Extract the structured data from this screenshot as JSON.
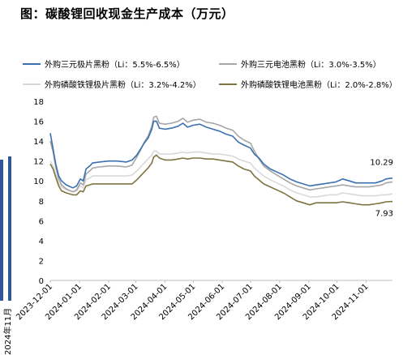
{
  "title": "图：碳酸锂回收现金生产成本（万元）",
  "left_fragment": {
    "label": "2024年11月",
    "color": "#2f5597"
  },
  "chart_data": {
    "type": "line",
    "ylim": [
      0,
      18
    ],
    "yticks": [
      0,
      2,
      4,
      6,
      8,
      10,
      12,
      14,
      16,
      18
    ],
    "xlim": [
      "2023-12-01",
      "2024-11-29"
    ],
    "xticks": [
      "2023-12-01",
      "2024-01-01",
      "2024-02-01",
      "2024-03-01",
      "2024-04-01",
      "2024-05-01",
      "2024-06-01",
      "2024-07-01",
      "2024-08-01",
      "2024-09-01",
      "2024-10-01",
      "2024-11-01"
    ],
    "annotations": [
      {
        "text": "10.29",
        "series": 0
      },
      {
        "text": "7.93",
        "series": 3
      }
    ],
    "series": [
      {
        "name": "外购三元极片黑粉（Li：5.5%-6.5%）",
        "color": "#3a6fb0",
        "points": [
          [
            "2023-12-01",
            14.8
          ],
          [
            "2023-12-04",
            13.2
          ],
          [
            "2023-12-07",
            11.6
          ],
          [
            "2023-12-10",
            10.5
          ],
          [
            "2023-12-13",
            10.0
          ],
          [
            "2023-12-18",
            9.6
          ],
          [
            "2023-12-25",
            9.3
          ],
          [
            "2023-12-29",
            9.5
          ],
          [
            "2024-01-02",
            10.2
          ],
          [
            "2024-01-05",
            10.0
          ],
          [
            "2024-01-08",
            11.2
          ],
          [
            "2024-01-12",
            11.5
          ],
          [
            "2024-01-15",
            11.8
          ],
          [
            "2024-01-22",
            11.9
          ],
          [
            "2024-02-01",
            12.0
          ],
          [
            "2024-02-10",
            12.0
          ],
          [
            "2024-02-20",
            11.9
          ],
          [
            "2024-02-26",
            12.1
          ],
          [
            "2024-03-02",
            12.6
          ],
          [
            "2024-03-06",
            13.2
          ],
          [
            "2024-03-10",
            13.8
          ],
          [
            "2024-03-14",
            14.3
          ],
          [
            "2024-03-18",
            15.2
          ],
          [
            "2024-03-20",
            16.0
          ],
          [
            "2024-03-23",
            16.0
          ],
          [
            "2024-03-26",
            15.3
          ],
          [
            "2024-04-01",
            15.2
          ],
          [
            "2024-04-08",
            15.3
          ],
          [
            "2024-04-15",
            15.5
          ],
          [
            "2024-04-20",
            15.8
          ],
          [
            "2024-04-25",
            15.4
          ],
          [
            "2024-05-01",
            15.6
          ],
          [
            "2024-05-08",
            15.7
          ],
          [
            "2024-05-15",
            15.4
          ],
          [
            "2024-05-22",
            15.2
          ],
          [
            "2024-05-29",
            15.0
          ],
          [
            "2024-06-05",
            14.7
          ],
          [
            "2024-06-12",
            14.5
          ],
          [
            "2024-06-18",
            13.9
          ],
          [
            "2024-06-24",
            13.6
          ],
          [
            "2024-07-01",
            13.3
          ],
          [
            "2024-07-05",
            12.7
          ],
          [
            "2024-07-10",
            12.3
          ],
          [
            "2024-07-15",
            11.7
          ],
          [
            "2024-07-22",
            11.2
          ],
          [
            "2024-07-29",
            10.9
          ],
          [
            "2024-08-05",
            10.6
          ],
          [
            "2024-08-12",
            10.2
          ],
          [
            "2024-08-19",
            9.9
          ],
          [
            "2024-08-26",
            9.7
          ],
          [
            "2024-09-02",
            9.5
          ],
          [
            "2024-09-09",
            9.6
          ],
          [
            "2024-09-16",
            9.7
          ],
          [
            "2024-09-23",
            9.8
          ],
          [
            "2024-09-30",
            9.9
          ],
          [
            "2024-10-07",
            10.2
          ],
          [
            "2024-10-14",
            10.0
          ],
          [
            "2024-10-21",
            9.8
          ],
          [
            "2024-10-28",
            9.8
          ],
          [
            "2024-11-04",
            9.8
          ],
          [
            "2024-11-11",
            9.8
          ],
          [
            "2024-11-18",
            10.0
          ],
          [
            "2024-11-22",
            10.2
          ],
          [
            "2024-11-29",
            10.29
          ]
        ]
      },
      {
        "name": "外购三元电池黑粉（Li：3.0%-3.5%）",
        "color": "#a6a6a6",
        "points": [
          [
            "2023-12-01",
            14.0
          ],
          [
            "2023-12-04",
            12.9
          ],
          [
            "2023-12-07",
            11.3
          ],
          [
            "2023-12-10",
            10.2
          ],
          [
            "2023-12-13",
            9.6
          ],
          [
            "2023-12-18",
            9.2
          ],
          [
            "2023-12-25",
            8.9
          ],
          [
            "2023-12-29",
            9.1
          ],
          [
            "2024-01-02",
            9.8
          ],
          [
            "2024-01-05",
            9.6
          ],
          [
            "2024-01-08",
            10.7
          ],
          [
            "2024-01-12",
            11.0
          ],
          [
            "2024-01-15",
            11.3
          ],
          [
            "2024-01-22",
            11.4
          ],
          [
            "2024-02-01",
            11.5
          ],
          [
            "2024-02-10",
            11.5
          ],
          [
            "2024-02-20",
            11.4
          ],
          [
            "2024-02-26",
            11.6
          ],
          [
            "2024-03-02",
            12.4
          ],
          [
            "2024-03-06",
            13.1
          ],
          [
            "2024-03-10",
            13.9
          ],
          [
            "2024-03-14",
            14.5
          ],
          [
            "2024-03-18",
            15.5
          ],
          [
            "2024-03-20",
            16.4
          ],
          [
            "2024-03-23",
            16.5
          ],
          [
            "2024-03-26",
            15.8
          ],
          [
            "2024-04-01",
            15.7
          ],
          [
            "2024-04-08",
            15.8
          ],
          [
            "2024-04-15",
            16.0
          ],
          [
            "2024-04-20",
            16.3
          ],
          [
            "2024-04-25",
            15.9
          ],
          [
            "2024-05-01",
            16.1
          ],
          [
            "2024-05-08",
            16.2
          ],
          [
            "2024-05-15",
            15.9
          ],
          [
            "2024-05-22",
            15.8
          ],
          [
            "2024-05-29",
            15.6
          ],
          [
            "2024-06-05",
            15.3
          ],
          [
            "2024-06-12",
            15.1
          ],
          [
            "2024-06-18",
            14.5
          ],
          [
            "2024-06-24",
            14.1
          ],
          [
            "2024-07-01",
            13.8
          ],
          [
            "2024-07-05",
            13.0
          ],
          [
            "2024-07-10",
            12.2
          ],
          [
            "2024-07-15",
            11.5
          ],
          [
            "2024-07-22",
            11.0
          ],
          [
            "2024-07-29",
            10.6
          ],
          [
            "2024-08-05",
            10.2
          ],
          [
            "2024-08-12",
            9.8
          ],
          [
            "2024-08-19",
            9.5
          ],
          [
            "2024-08-26",
            9.3
          ],
          [
            "2024-09-02",
            9.1
          ],
          [
            "2024-09-09",
            9.2
          ],
          [
            "2024-09-16",
            9.3
          ],
          [
            "2024-09-23",
            9.4
          ],
          [
            "2024-09-30",
            9.5
          ],
          [
            "2024-10-07",
            9.6
          ],
          [
            "2024-10-14",
            9.5
          ],
          [
            "2024-10-21",
            9.4
          ],
          [
            "2024-10-28",
            9.4
          ],
          [
            "2024-11-04",
            9.4
          ],
          [
            "2024-11-11",
            9.5
          ],
          [
            "2024-11-18",
            9.6
          ],
          [
            "2024-11-22",
            9.8
          ],
          [
            "2024-11-29",
            9.9
          ]
        ]
      },
      {
        "name": "外购磷酸铁锂极片黑粉（Li：3.2%-4.2%）",
        "color": "#d9d9d9",
        "points": [
          [
            "2023-12-01",
            12.0
          ],
          [
            "2023-12-04",
            11.5
          ],
          [
            "2023-12-07",
            10.6
          ],
          [
            "2023-12-10",
            9.8
          ],
          [
            "2023-12-13",
            9.4
          ],
          [
            "2023-12-18",
            9.1
          ],
          [
            "2023-12-25",
            8.9
          ],
          [
            "2023-12-29",
            9.0
          ],
          [
            "2024-01-02",
            9.5
          ],
          [
            "2024-01-05",
            9.3
          ],
          [
            "2024-01-08",
            10.1
          ],
          [
            "2024-01-12",
            10.3
          ],
          [
            "2024-01-15",
            10.5
          ],
          [
            "2024-01-22",
            10.5
          ],
          [
            "2024-02-01",
            10.5
          ],
          [
            "2024-02-10",
            10.5
          ],
          [
            "2024-02-20",
            10.5
          ],
          [
            "2024-02-26",
            10.6
          ],
          [
            "2024-03-02",
            11.0
          ],
          [
            "2024-03-06",
            11.4
          ],
          [
            "2024-03-10",
            11.8
          ],
          [
            "2024-03-14",
            12.2
          ],
          [
            "2024-03-18",
            12.6
          ],
          [
            "2024-03-20",
            13.0
          ],
          [
            "2024-03-23",
            13.0
          ],
          [
            "2024-03-26",
            12.7
          ],
          [
            "2024-04-01",
            12.7
          ],
          [
            "2024-04-08",
            12.7
          ],
          [
            "2024-04-15",
            12.8
          ],
          [
            "2024-04-20",
            12.9
          ],
          [
            "2024-04-25",
            12.8
          ],
          [
            "2024-05-01",
            12.9
          ],
          [
            "2024-05-08",
            12.9
          ],
          [
            "2024-05-15",
            12.8
          ],
          [
            "2024-05-22",
            12.7
          ],
          [
            "2024-05-29",
            12.7
          ],
          [
            "2024-06-05",
            12.6
          ],
          [
            "2024-06-12",
            12.5
          ],
          [
            "2024-06-18",
            12.2
          ],
          [
            "2024-06-24",
            12.0
          ],
          [
            "2024-07-01",
            11.8
          ],
          [
            "2024-07-05",
            11.3
          ],
          [
            "2024-07-10",
            10.9
          ],
          [
            "2024-07-15",
            10.5
          ],
          [
            "2024-07-22",
            10.1
          ],
          [
            "2024-07-29",
            9.8
          ],
          [
            "2024-08-05",
            9.5
          ],
          [
            "2024-08-12",
            9.1
          ],
          [
            "2024-08-19",
            8.8
          ],
          [
            "2024-08-26",
            8.6
          ],
          [
            "2024-09-02",
            8.4
          ],
          [
            "2024-09-09",
            8.4
          ],
          [
            "2024-09-16",
            8.5
          ],
          [
            "2024-09-23",
            8.6
          ],
          [
            "2024-09-30",
            8.6
          ],
          [
            "2024-10-07",
            8.8
          ],
          [
            "2024-10-14",
            8.7
          ],
          [
            "2024-10-21",
            8.6
          ],
          [
            "2024-10-28",
            8.5
          ],
          [
            "2024-11-04",
            8.5
          ],
          [
            "2024-11-11",
            8.5
          ],
          [
            "2024-11-18",
            8.6
          ],
          [
            "2024-11-22",
            8.6
          ],
          [
            "2024-11-29",
            8.7
          ]
        ]
      },
      {
        "name": "外购磷酸铁锂电池黑粉（Li：2.0%-2.8%）",
        "color": "#7f7340",
        "points": [
          [
            "2023-12-01",
            11.7
          ],
          [
            "2023-12-04",
            11.2
          ],
          [
            "2023-12-07",
            10.3
          ],
          [
            "2023-12-10",
            9.5
          ],
          [
            "2023-12-13",
            9.0
          ],
          [
            "2023-12-18",
            8.8
          ],
          [
            "2023-12-25",
            8.6
          ],
          [
            "2023-12-29",
            8.6
          ],
          [
            "2024-01-02",
            9.0
          ],
          [
            "2024-01-05",
            8.9
          ],
          [
            "2024-01-08",
            9.5
          ],
          [
            "2024-01-12",
            9.6
          ],
          [
            "2024-01-15",
            9.7
          ],
          [
            "2024-01-22",
            9.7
          ],
          [
            "2024-02-01",
            9.7
          ],
          [
            "2024-02-10",
            9.7
          ],
          [
            "2024-02-20",
            9.7
          ],
          [
            "2024-02-26",
            9.7
          ],
          [
            "2024-03-02",
            10.1
          ],
          [
            "2024-03-06",
            10.5
          ],
          [
            "2024-03-10",
            10.9
          ],
          [
            "2024-03-14",
            11.3
          ],
          [
            "2024-03-18",
            11.8
          ],
          [
            "2024-03-20",
            12.4
          ],
          [
            "2024-03-23",
            12.6
          ],
          [
            "2024-03-26",
            12.3
          ],
          [
            "2024-04-01",
            12.1
          ],
          [
            "2024-04-08",
            12.1
          ],
          [
            "2024-04-15",
            12.2
          ],
          [
            "2024-04-20",
            12.3
          ],
          [
            "2024-04-25",
            12.2
          ],
          [
            "2024-05-01",
            12.3
          ],
          [
            "2024-05-08",
            12.3
          ],
          [
            "2024-05-15",
            12.2
          ],
          [
            "2024-05-22",
            12.2
          ],
          [
            "2024-05-29",
            12.1
          ],
          [
            "2024-06-05",
            12.0
          ],
          [
            "2024-06-12",
            11.9
          ],
          [
            "2024-06-18",
            11.5
          ],
          [
            "2024-06-24",
            11.2
          ],
          [
            "2024-07-01",
            11.0
          ],
          [
            "2024-07-05",
            10.5
          ],
          [
            "2024-07-10",
            10.1
          ],
          [
            "2024-07-15",
            9.7
          ],
          [
            "2024-07-22",
            9.4
          ],
          [
            "2024-07-29",
            9.1
          ],
          [
            "2024-08-05",
            8.8
          ],
          [
            "2024-08-12",
            8.4
          ],
          [
            "2024-08-19",
            8.0
          ],
          [
            "2024-08-26",
            7.8
          ],
          [
            "2024-09-02",
            7.6
          ],
          [
            "2024-09-09",
            7.8
          ],
          [
            "2024-09-16",
            7.8
          ],
          [
            "2024-09-23",
            7.8
          ],
          [
            "2024-09-30",
            7.8
          ],
          [
            "2024-10-07",
            7.9
          ],
          [
            "2024-10-14",
            7.8
          ],
          [
            "2024-10-21",
            7.7
          ],
          [
            "2024-10-28",
            7.6
          ],
          [
            "2024-11-04",
            7.6
          ],
          [
            "2024-11-11",
            7.7
          ],
          [
            "2024-11-18",
            7.8
          ],
          [
            "2024-11-22",
            7.9
          ],
          [
            "2024-11-29",
            7.93
          ]
        ]
      }
    ]
  }
}
